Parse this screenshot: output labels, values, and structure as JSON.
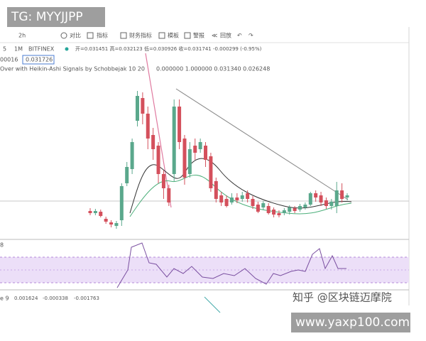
{
  "watermark_top": "TG: MYYJJPP",
  "watermark_bottom": "www.yaxp100.com",
  "watermark_zhihu": "知乎 @区块链迈摩院",
  "toolbar": {
    "interval": "2h",
    "items": [
      "对比",
      "指标",
      "财务指标",
      "模板",
      "警报",
      "回放"
    ]
  },
  "legend": {
    "symbol": "5",
    "interval": "1M",
    "exchange": "BITFINEX",
    "ohlc": "开=0.031451 高=0.032123 低=0.030926 收=0.031741 -0.000299 (-0.95%)"
  },
  "price_tag": "0.031726",
  "row_label": "00016",
  "indicator": {
    "name": "Over with Heikin-Ashi Signals by Schobbejak 10 20",
    "values": "0.000000 1.000000 0.031340 0.026248"
  },
  "pane_label": "8",
  "bottom_indicator": {
    "label": "e 9",
    "values": [
      "0.001624",
      "-0.000338",
      "-0.001763"
    ]
  },
  "chart_data": {
    "type": "candlestick",
    "up_color": "#5aa88c",
    "down_color": "#d4505c",
    "ylim": [
      0.015,
      0.061
    ],
    "open": [
      0.0226,
      0.022,
      0.0224,
      0.0204,
      0.0194,
      0.0184,
      0.02,
      0.0304,
      0.0344,
      0.048,
      0.0544,
      0.05,
      0.044,
      0.041,
      0.033,
      0.029,
      0.033,
      0.052,
      0.043,
      0.033,
      0.041,
      0.04,
      0.041,
      0.038,
      0.031,
      0.027,
      0.026,
      0.025,
      0.0264,
      0.026,
      0.0276,
      0.026,
      0.0244,
      0.0236,
      0.024,
      0.023,
      0.022,
      0.022,
      0.0224,
      0.0234,
      0.023,
      0.0236,
      0.0244,
      0.0276,
      0.027,
      0.0256,
      0.024,
      0.024,
      0.0284,
      0.0264
    ],
    "close": [
      0.022,
      0.0226,
      0.0212,
      0.0196,
      0.0188,
      0.0192,
      0.0296,
      0.035,
      0.042,
      0.055,
      0.05,
      0.043,
      0.04,
      0.033,
      0.029,
      0.025,
      0.052,
      0.042,
      0.032,
      0.04,
      0.039,
      0.042,
      0.037,
      0.029,
      0.026,
      0.025,
      0.024,
      0.0264,
      0.0256,
      0.027,
      0.026,
      0.024,
      0.0224,
      0.0248,
      0.022,
      0.0216,
      0.0214,
      0.0228,
      0.0236,
      0.0226,
      0.024,
      0.0244,
      0.0276,
      0.0264,
      0.025,
      0.024,
      0.0252,
      0.0284,
      0.026,
      0.027
    ],
    "high": [
      0.0234,
      0.0232,
      0.023,
      0.021,
      0.02,
      0.0198,
      0.0304,
      0.0364,
      0.043,
      0.0564,
      0.056,
      0.052,
      0.046,
      0.042,
      0.034,
      0.03,
      0.054,
      0.054,
      0.044,
      0.042,
      0.043,
      0.043,
      0.042,
      0.039,
      0.032,
      0.028,
      0.027,
      0.0276,
      0.0276,
      0.028,
      0.0284,
      0.0268,
      0.0252,
      0.0254,
      0.0248,
      0.0236,
      0.0228,
      0.0234,
      0.0242,
      0.024,
      0.0246,
      0.025,
      0.028,
      0.0284,
      0.028,
      0.0264,
      0.026,
      0.0308,
      0.0304,
      0.0276
    ],
    "low": [
      0.0214,
      0.0214,
      0.0208,
      0.019,
      0.018,
      0.0176,
      0.0184,
      0.0296,
      0.033,
      0.0464,
      0.047,
      0.04,
      0.037,
      0.0304,
      0.026,
      0.024,
      0.031,
      0.04,
      0.03,
      0.032,
      0.037,
      0.039,
      0.035,
      0.028,
      0.025,
      0.024,
      0.0236,
      0.0244,
      0.0248,
      0.0252,
      0.025,
      0.0232,
      0.022,
      0.0228,
      0.0216,
      0.0208,
      0.0208,
      0.0214,
      0.0216,
      0.022,
      0.0224,
      0.023,
      0.024,
      0.0252,
      0.024,
      0.0232,
      0.023,
      0.022,
      0.025,
      0.0256
    ]
  }
}
